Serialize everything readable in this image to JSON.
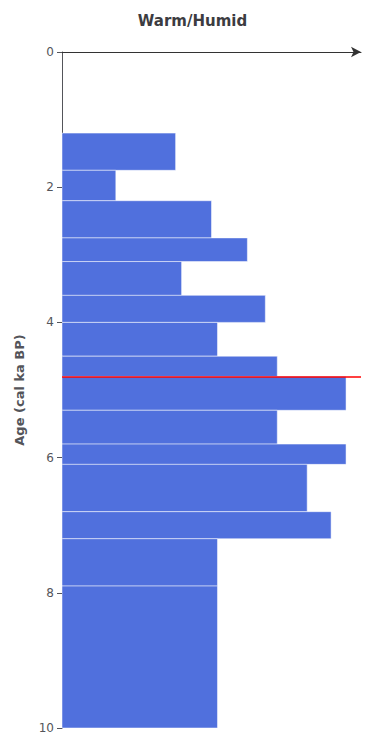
{
  "chart_data": {
    "type": "bar",
    "orientation": "horizontal",
    "title": "Warm/Humid",
    "ylabel": "Age (cal ka BP)",
    "y_start": [
      1.2,
      1.75,
      2.2,
      2.75,
      3.1,
      3.6,
      4.0,
      4.5,
      4.8,
      5.3,
      5.8,
      6.1,
      6.8,
      7.2,
      7.9
    ],
    "y_end": [
      1.75,
      2.2,
      2.75,
      3.1,
      3.6,
      4.0,
      4.5,
      4.8,
      5.3,
      5.8,
      6.1,
      6.8,
      7.2,
      7.9,
      10.0
    ],
    "values": [
      0.38,
      0.18,
      0.5,
      0.62,
      0.4,
      0.68,
      0.52,
      0.72,
      0.95,
      0.72,
      0.95,
      0.82,
      0.9,
      0.52,
      0.52
    ],
    "xlim": [
      0,
      1.0
    ],
    "ylim": [
      10,
      0
    ],
    "yticks": [
      0,
      2,
      4,
      6,
      8,
      10
    ],
    "hlines": [
      {
        "y": 4.8,
        "color": "red"
      }
    ],
    "grid": false,
    "tick_labels": "y"
  }
}
